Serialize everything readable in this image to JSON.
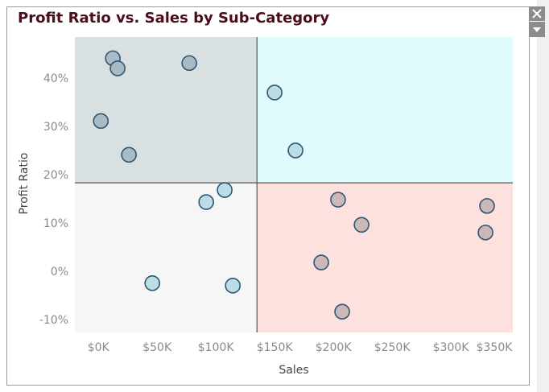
{
  "chart_data": {
    "type": "scatter",
    "title": "Profit Ratio vs. Sales by Sub-Category",
    "xlabel": "Sales",
    "ylabel": "Profit Ratio",
    "x": [
      12300,
      16400,
      77400,
      2100,
      26000,
      150000,
      167800,
      107500,
      91800,
      45900,
      114400,
      204000,
      224000,
      189700,
      207500,
      330800,
      329500
    ],
    "values": [
      44.3,
      42.2,
      43.3,
      31.3,
      24.3,
      37.2,
      25.2,
      17.0,
      14.5,
      -2.3,
      -2.8,
      15.0,
      9.8,
      2.0,
      -8.2,
      13.7,
      8.2
    ],
    "colors": [
      "#a9bcc5",
      "#a9bcc5",
      "#a9bcc5",
      "#a9bcc5",
      "#a9bcc5",
      "#bcdde6",
      "#bcdde6",
      "#bcdde6",
      "#bcdde6",
      "#bcdde6",
      "#bcdde6",
      "#ccb8b9",
      "#ccb8b9",
      "#ccb8b9",
      "#ccb8b9",
      "#ccb8b9",
      "#ccb8b9"
    ],
    "marker_edge_color": "#2f5672",
    "xlim": [
      -20000,
      352700
    ],
    "ylim": [
      -12.5,
      48.7
    ],
    "xticks": [
      {
        "value": 0,
        "label": "$0K"
      },
      {
        "value": 50000,
        "label": "$50K"
      },
      {
        "value": 100000,
        "label": "$100K"
      },
      {
        "value": 150000,
        "label": "$150K"
      },
      {
        "value": 200000,
        "label": "$200K"
      },
      {
        "value": 250000,
        "label": "$250K"
      },
      {
        "value": 300000,
        "label": "$300K"
      },
      {
        "value": 350000,
        "label": "$350K"
      }
    ],
    "yticks": [
      {
        "value": -10,
        "label": "-10%"
      },
      {
        "value": 0,
        "label": "0%"
      },
      {
        "value": 10,
        "label": "10%"
      },
      {
        "value": 20,
        "label": "20%"
      },
      {
        "value": 30,
        "label": "30%"
      },
      {
        "value": 40,
        "label": "40%"
      }
    ],
    "reference_lines": {
      "x": 135000,
      "y": 18.5
    },
    "quadrant_colors": {
      "top_left": "#d9e0e1",
      "top_right": "#e0fbfc",
      "bottom_left": "#f6f6f6",
      "bottom_right": "#fde1df"
    },
    "grid": false
  }
}
